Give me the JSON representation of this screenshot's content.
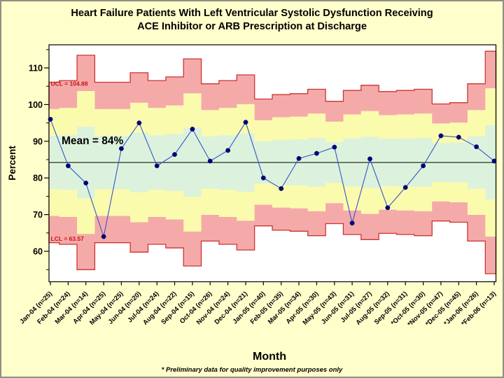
{
  "title": {
    "line1": "Heart Failure Patients With Left Ventricular Systolic Dysfunction Receiving",
    "line2": "ACE Inhibitor or ARB Prescription at Discharge"
  },
  "footnote": "* Preliminary data for quality improvement purposes only",
  "chart_data": {
    "type": "line",
    "subtype": "p-control-chart",
    "xlabel": "Month",
    "ylabel": "Percent",
    "categories": [
      "Jan-04 (n=25)",
      "Feb-04 (n=24)",
      "Mar-04 (n=14)",
      "Apr-04 (n=25)",
      "May-04 (n=25)",
      "Jun-04 (n=20)",
      "Jul-04 (n=24)",
      "Aug-04 (n=22)",
      "Sep-04 (n=15)",
      "Oct-04 (n=26)",
      "Nov-04 (n=24)",
      "Dec-04 (n=21)",
      "Jan-05 (n=40)",
      "Feb-05 (n=35)",
      "Mar-05 (n=34)",
      "Apr-05 (n=30)",
      "May-05 (n=43)",
      "Jun-05 (n=31)",
      "Jul-05 (n=27)",
      "Aug-05 (n=32)",
      "Sep-05 (n=31)",
      "*Oct-05 (n=30)",
      "*Nov-05 (n=47)",
      "*Dec-05 (n=45)",
      "*Jan-06 (n=26)",
      "*Feb-06 (n=13)"
    ],
    "sample_sizes": [
      25,
      24,
      14,
      25,
      25,
      20,
      24,
      22,
      15,
      26,
      24,
      21,
      40,
      35,
      34,
      30,
      43,
      31,
      27,
      32,
      31,
      30,
      47,
      45,
      26,
      13
    ],
    "values": [
      96.0,
      83.3,
      78.6,
      64.0,
      88.0,
      95.0,
      83.3,
      86.4,
      93.3,
      84.6,
      87.5,
      95.2,
      80.0,
      77.1,
      85.3,
      86.7,
      88.4,
      67.7,
      85.2,
      71.9,
      77.4,
      83.3,
      91.5,
      91.1,
      88.5,
      84.6
    ],
    "mean": 84,
    "mean_label": "Mean = 84%",
    "ucl": 104.88,
    "ucl_label": "UCL = 104.88",
    "lcl": 63.57,
    "lcl_label": "LCL = 63.57",
    "ylim": [
      51.7,
      116.3
    ],
    "yticks": [
      110,
      100,
      90,
      80,
      70,
      60
    ],
    "grid": false,
    "legend": false,
    "zone_colors": {
      "a_color": "#F5AAAA",
      "b_color": "#FBFBAE",
      "c_color": "#DCF2DC",
      "limit_line": "#CC3333"
    },
    "series_color": "#3355CC",
    "marker_color": "#000080",
    "background": "#FFFFCC",
    "plot_background": "#FFFFFF"
  }
}
